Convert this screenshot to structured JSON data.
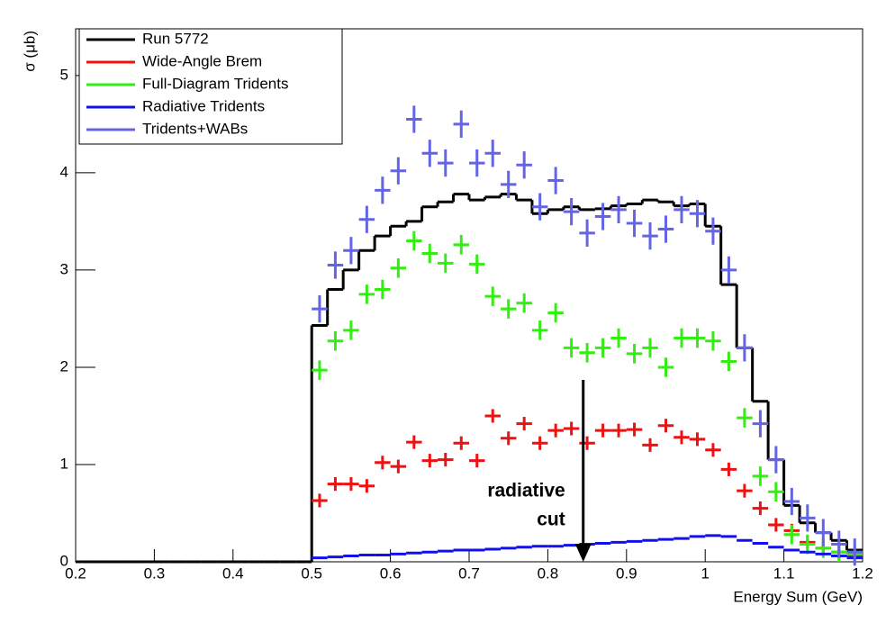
{
  "chart_data": {
    "type": "histogram",
    "x_label": "Energy Sum (GeV)",
    "y_label": "σ (μb)",
    "bins": [
      0.2,
      0.22,
      0.24,
      0.26,
      0.28,
      0.3,
      0.32,
      0.34,
      0.36,
      0.38,
      0.4,
      0.42,
      0.44,
      0.46,
      0.48,
      0.5,
      0.52,
      0.54,
      0.56,
      0.58,
      0.6,
      0.62,
      0.64,
      0.66,
      0.68,
      0.7,
      0.72,
      0.74,
      0.76,
      0.78,
      0.8,
      0.82,
      0.84,
      0.86,
      0.88,
      0.9,
      0.92,
      0.94,
      0.96,
      0.98,
      1.0,
      1.02,
      1.04,
      1.06,
      1.08,
      1.1,
      1.12,
      1.14,
      1.16,
      1.18,
      1.2
    ],
    "xlim": [
      0.2,
      1.2
    ],
    "ylim": [
      0,
      5.48
    ],
    "xticks": [
      0.2,
      0.3,
      0.4,
      0.5,
      0.6,
      0.7,
      0.8,
      0.9,
      1,
      1.1,
      1.2
    ],
    "yticks": [
      0,
      1,
      2,
      3,
      4,
      5
    ],
    "series": [
      {
        "name": "Run 5772",
        "color": "#000000",
        "style": "step",
        "values": [
          0,
          0,
          0,
          0,
          0,
          0,
          0,
          0,
          0,
          0,
          0,
          0,
          0,
          0,
          0,
          2.43,
          2.8,
          3.0,
          3.2,
          3.35,
          3.45,
          3.5,
          3.65,
          3.7,
          3.78,
          3.72,
          3.75,
          3.78,
          3.72,
          3.58,
          3.62,
          3.65,
          3.62,
          3.63,
          3.66,
          3.68,
          3.72,
          3.7,
          3.66,
          3.68,
          3.45,
          2.85,
          2.2,
          1.65,
          1.05,
          0.58,
          0.4,
          0.3,
          0.22,
          0.12
        ]
      },
      {
        "name": "Wide-Angle Brem",
        "color": "#ee1111",
        "style": "points",
        "error": 0.07,
        "values": [
          null,
          null,
          null,
          null,
          null,
          null,
          null,
          null,
          null,
          null,
          null,
          null,
          null,
          null,
          null,
          0.63,
          0.8,
          0.8,
          0.78,
          1.02,
          0.98,
          1.23,
          1.04,
          1.05,
          1.22,
          1.04,
          1.5,
          1.27,
          1.42,
          1.22,
          1.35,
          1.37,
          1.22,
          1.35,
          1.35,
          1.36,
          1.2,
          1.4,
          1.28,
          1.26,
          1.15,
          0.95,
          0.73,
          0.55,
          0.38,
          0.32,
          0.2,
          0.14,
          0.1,
          0.06
        ]
      },
      {
        "name": "Full-Diagram Tridents",
        "color": "#33ee11",
        "style": "points",
        "error": 0.1,
        "values": [
          null,
          null,
          null,
          null,
          null,
          null,
          null,
          null,
          null,
          null,
          null,
          null,
          null,
          null,
          null,
          1.97,
          2.27,
          2.38,
          2.75,
          2.8,
          3.02,
          3.3,
          3.17,
          3.07,
          3.26,
          3.06,
          2.73,
          2.6,
          2.66,
          2.38,
          2.56,
          2.2,
          2.15,
          2.2,
          2.3,
          2.14,
          2.2,
          2.0,
          2.3,
          2.3,
          2.27,
          2.06,
          1.48,
          0.88,
          0.72,
          0.28,
          0.18,
          0.14,
          0.1,
          0.08
        ]
      },
      {
        "name": "Radiative Tridents",
        "color": "#1111ee",
        "style": "points",
        "error": 0.01,
        "values": [
          null,
          null,
          null,
          null,
          null,
          null,
          null,
          null,
          null,
          null,
          null,
          null,
          null,
          null,
          null,
          0.04,
          0.05,
          0.06,
          0.07,
          0.07,
          0.08,
          0.09,
          0.1,
          0.11,
          0.12,
          0.12,
          0.13,
          0.14,
          0.15,
          0.16,
          0.16,
          0.17,
          0.18,
          0.19,
          0.2,
          0.21,
          0.22,
          0.23,
          0.24,
          0.26,
          0.27,
          0.26,
          0.22,
          0.19,
          0.15,
          0.12,
          0.1,
          0.08,
          0.06,
          0.04
        ]
      },
      {
        "name": "Tridents+WABs",
        "color": "#6464e6",
        "style": "points",
        "error": 0.14,
        "values": [
          null,
          null,
          null,
          null,
          null,
          null,
          null,
          null,
          null,
          null,
          null,
          null,
          null,
          null,
          null,
          2.6,
          3.05,
          3.2,
          3.52,
          3.82,
          4.02,
          4.55,
          4.2,
          4.1,
          4.5,
          4.1,
          4.2,
          3.88,
          4.08,
          3.65,
          3.92,
          3.6,
          3.38,
          3.55,
          3.62,
          3.48,
          3.35,
          3.42,
          3.62,
          3.58,
          3.4,
          3.0,
          2.2,
          1.42,
          1.05,
          0.62,
          0.45,
          0.3,
          0.18,
          0.1
        ]
      }
    ],
    "annotation": {
      "text": [
        "radiative",
        "cut"
      ],
      "x": 0.845,
      "y_start": 1.87,
      "y_end": 0
    }
  }
}
